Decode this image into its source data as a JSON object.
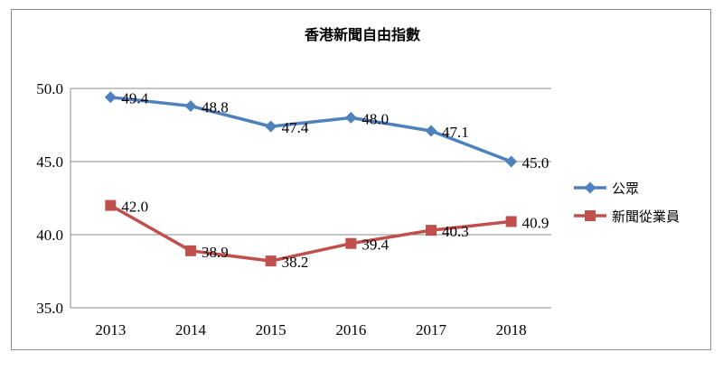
{
  "chart_data": {
    "type": "line",
    "title": "香港新聞自由指數",
    "categories": [
      "2013",
      "2014",
      "2015",
      "2016",
      "2017",
      "2018"
    ],
    "ylim": [
      35.0,
      50.0
    ],
    "yticks": [
      "35.0",
      "40.0",
      "45.0",
      "50.0"
    ],
    "grid": "horizontal",
    "legend_position": "right",
    "series": [
      {
        "name": "公眾",
        "color": "#4f81bd",
        "marker": "diamond",
        "values": [
          49.4,
          48.8,
          47.4,
          48.0,
          47.1,
          45.0
        ],
        "labels": [
          "49.4",
          "48.8",
          "47.4",
          "48.0",
          "47.1",
          "45.0"
        ]
      },
      {
        "name": "新聞從業員",
        "color": "#c0504d",
        "marker": "square",
        "values": [
          42.0,
          38.9,
          38.2,
          39.4,
          40.3,
          40.9
        ],
        "labels": [
          "42.0",
          "38.9",
          "38.2",
          "39.4",
          "40.3",
          "40.9"
        ]
      }
    ]
  }
}
